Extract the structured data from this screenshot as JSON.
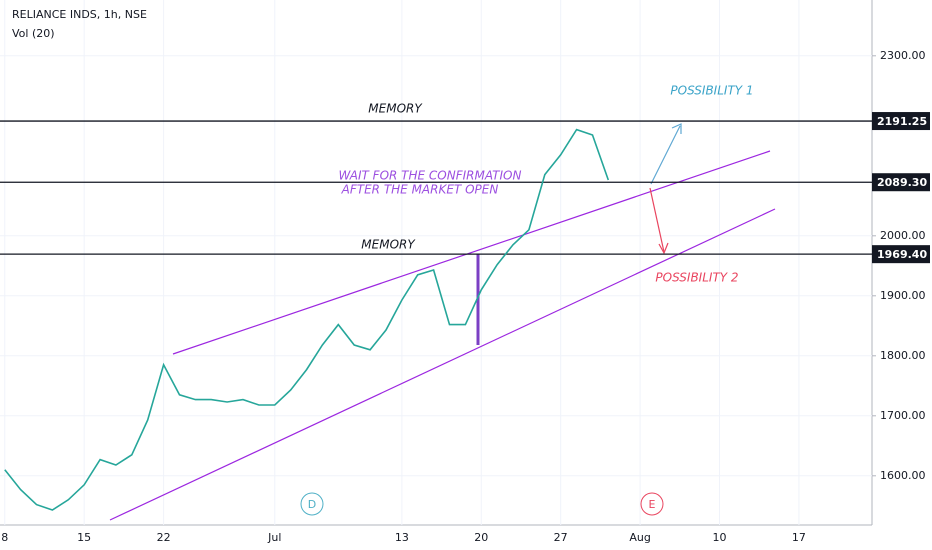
{
  "chart_data": {
    "type": "line",
    "title": "RELIANCE INDS, 1h, NSE",
    "subtitle": "Vol (20)",
    "color": "#26a69a",
    "x": [
      0,
      1,
      2,
      3,
      4,
      5,
      6,
      7,
      8,
      9,
      10,
      11,
      12,
      13,
      14,
      15,
      16,
      17,
      18,
      19,
      20,
      21,
      22,
      23,
      24,
      25,
      26,
      27,
      28,
      29,
      30,
      31,
      32,
      33,
      34,
      35,
      36,
      37,
      38
    ],
    "values": [
      1610,
      1577,
      1552,
      1543,
      1560,
      1585,
      1627,
      1618,
      1635,
      1693,
      1785,
      1735,
      1727,
      1727,
      1723,
      1727,
      1718,
      1718,
      1743,
      1777,
      1818,
      1852,
      1818,
      1810,
      1843,
      1893,
      1935,
      1943,
      1852,
      1852,
      1910,
      1952,
      1985,
      2010,
      2102,
      2135,
      2177,
      2168,
      2093
    ],
    "xlim": [
      -0.3,
      54.6
    ],
    "xticks": [
      {
        "value": 0,
        "label": "8"
      },
      {
        "value": 5,
        "label": "15"
      },
      {
        "value": 10,
        "label": "22"
      },
      {
        "value": 17,
        "label": "Jul"
      },
      {
        "value": 25,
        "label": "13"
      },
      {
        "value": 30,
        "label": "20"
      },
      {
        "value": 35,
        "label": "27"
      },
      {
        "value": 40,
        "label": "Aug"
      },
      {
        "value": 45,
        "label": "10"
      },
      {
        "value": 50,
        "label": "17"
      }
    ],
    "ylim": [
      1518,
      2393
    ],
    "yticks": [
      {
        "value": 2300,
        "label": "2300.00"
      },
      {
        "value": 2000,
        "label": "2000.00"
      },
      {
        "value": 1900,
        "label": "1900.00"
      },
      {
        "value": 1800,
        "label": "1800.00"
      },
      {
        "value": 1700,
        "label": "1700.00"
      },
      {
        "value": 1600,
        "label": "1600.00"
      }
    ],
    "price_lines": [
      {
        "value": 2191.25,
        "color": "#131722"
      },
      {
        "value": {
          "value": 2089.3,
          "label": "2089.30"
        },
        "color": "#131722"
      },
      {
        "value": {
          "value": 1969.4,
          "label": "1969.40"
        },
        "color": "#131722"
      }
    ],
    "annotations": {
      "memory_top": "MEMORY",
      "memory_bottom": "MEMORY",
      "possibility_1": "POSSIBILITY 1",
      "possibility_2": "POSSIBILITY 2",
      "wait": "WAIT FOR THE CONFIRMATION",
      "after": "AFTER THE MARKET OPEN",
      "dividend": "D",
      "earnings": "E"
    }
  }
}
